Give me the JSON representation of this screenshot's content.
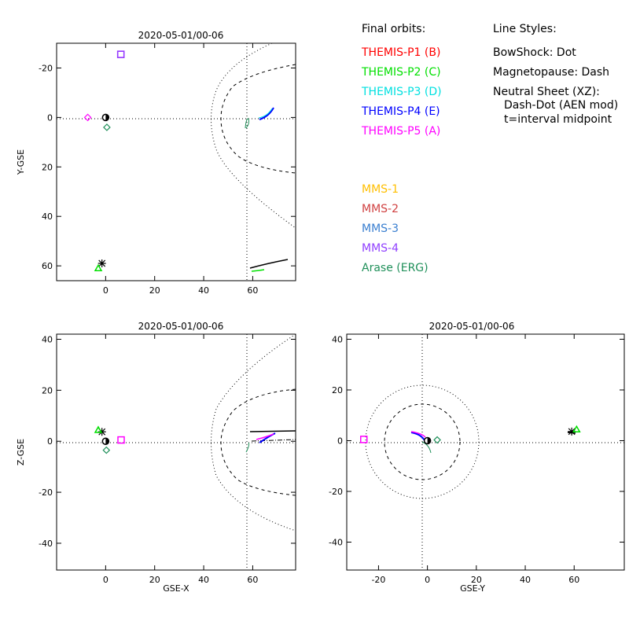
{
  "legend_right": {
    "header": "Line Styles:",
    "lines": [
      "BowShock: Dot",
      "Magnetopause: Dash",
      "Neutral Sheet (XZ):",
      "Dash-Dot (AEN mod)",
      "t=interval midpoint"
    ]
  },
  "legend_themis": {
    "header": "Final orbits:",
    "items": [
      {
        "label": "THEMIS-P1 (B)",
        "color": "#ff0000"
      },
      {
        "label": "THEMIS-P2 (C)",
        "color": "#00e000"
      },
      {
        "label": "THEMIS-P3 (D)",
        "color": "#00e0e0"
      },
      {
        "label": "THEMIS-P4 (E)",
        "color": "#0000ff"
      },
      {
        "label": "THEMIS-P5 (A)",
        "color": "#ff00ff"
      }
    ]
  },
  "legend_mms": {
    "items": [
      {
        "label": "MMS-1",
        "color": "#ffbf00"
      },
      {
        "label": "MMS-2",
        "color": "#d04040"
      },
      {
        "label": "MMS-3",
        "color": "#3a7fd0"
      },
      {
        "label": "MMS-4",
        "color": "#9040ff"
      },
      {
        "label": "Arase (ERG)",
        "color": "#20905a"
      }
    ]
  },
  "chart_data": [
    {
      "type": "line",
      "title": "2020-05-01/00-06",
      "xlabel": "",
      "ylabel": "Y-GSE",
      "xlim": [
        -20,
        77.5
      ],
      "ylim": [
        66,
        -30
      ],
      "xticks": [
        60,
        40,
        20,
        0
      ],
      "yticks": [
        -20,
        0,
        20,
        40,
        60
      ],
      "markers": [
        {
          "name": "earth",
          "x": 0,
          "y": 0,
          "shape": "earth"
        },
        {
          "name": "themis-p5",
          "x": 6.2,
          "y": -25.5,
          "shape": "square",
          "color": "#ff00ff"
        },
        {
          "name": "mms-4",
          "x": 6.2,
          "y": -25.5,
          "shape": "square",
          "color": "#9040ff"
        },
        {
          "name": "themis-cluster",
          "x": -7.3,
          "y": 0,
          "shape": "diamond",
          "color": "#ff00ff"
        },
        {
          "name": "erg",
          "x": 0.5,
          "y": 4,
          "shape": "diamond",
          "color": "#20905a"
        },
        {
          "name": "geo-star",
          "x": -1.5,
          "y": 59,
          "shape": "star",
          "color": "#000000"
        },
        {
          "name": "themis-p2-far",
          "x": -3,
          "y": 61,
          "shape": "triangle",
          "color": "#00e000"
        }
      ]
    },
    {
      "type": "line",
      "title": "2020-05-01/00-06",
      "xlabel": "GSE-X",
      "ylabel": "Z-GSE",
      "xlim": [
        -20,
        77.5
      ],
      "ylim": [
        -50.5,
        42
      ],
      "xticks": [
        60,
        40,
        20,
        0
      ],
      "yticks": [
        -40,
        -20,
        0,
        20,
        40
      ],
      "markers": [
        {
          "name": "earth",
          "x": 0,
          "y": 0,
          "shape": "earth"
        },
        {
          "name": "themis-p5",
          "x": 6.3,
          "y": 0.5,
          "shape": "square",
          "color": "#ff00ff"
        },
        {
          "name": "geo-star",
          "x": -1.5,
          "y": 3.7,
          "shape": "star",
          "color": "#000000"
        },
        {
          "name": "themis-p2-far",
          "x": -3,
          "y": 4.4,
          "shape": "triangle",
          "color": "#00e000"
        },
        {
          "name": "erg",
          "x": 0.3,
          "y": -3.5,
          "shape": "diamond",
          "color": "#20905a"
        }
      ]
    },
    {
      "type": "line",
      "title": "2020-05-01/00-06",
      "xlabel": "GSE-Y",
      "ylabel": "",
      "xlim": [
        -33,
        80.5
      ],
      "ylim": [
        -51,
        42
      ],
      "xticks": [
        -20,
        0,
        20,
        40,
        60
      ],
      "yticks": [
        -40,
        -20,
        0,
        20,
        40
      ],
      "markers": [
        {
          "name": "earth",
          "x": 0,
          "y": 0,
          "shape": "earth"
        },
        {
          "name": "themis-p5",
          "x": -26,
          "y": 0.5,
          "shape": "square",
          "color": "#ff00ff"
        },
        {
          "name": "geo-star",
          "x": 59,
          "y": 3.6,
          "shape": "star",
          "color": "#000000"
        },
        {
          "name": "themis-p2-far",
          "x": 61,
          "y": 4.4,
          "shape": "triangle",
          "color": "#00e000"
        },
        {
          "name": "erg",
          "x": 4,
          "y": 0.3,
          "shape": "diamond",
          "color": "#20905a"
        }
      ]
    }
  ]
}
